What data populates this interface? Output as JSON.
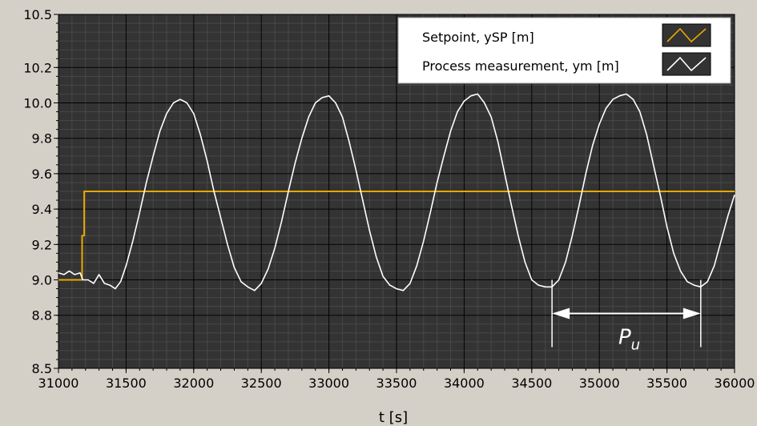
{
  "chart_data": {
    "type": "line",
    "xlabel": "t [s]",
    "xlim": [
      31000,
      36000
    ],
    "ylim": [
      8.5,
      10.5
    ],
    "x_ticks": [
      31000,
      31500,
      32000,
      32500,
      33000,
      33500,
      34000,
      34500,
      35000,
      35500,
      36000
    ],
    "y_ticks": [
      8.5,
      8.8,
      9.0,
      9.2,
      9.4,
      9.6,
      9.8,
      10.0,
      10.2,
      10.5
    ],
    "y_tick_labels": [
      "8.5",
      "8.8",
      "9.0",
      "9.2",
      "9.4",
      "9.6",
      "9.8",
      "10.0",
      "10.2",
      "10.5"
    ],
    "grid": true,
    "legend_position": "top-right",
    "series": [
      {
        "name": "Setpoint, ySP [m]",
        "color": "#e8a800",
        "points": [
          [
            31000,
            9.0
          ],
          [
            31175,
            9.0
          ],
          [
            31175,
            9.25
          ],
          [
            31190,
            9.25
          ],
          [
            31190,
            9.5
          ],
          [
            36000,
            9.5
          ]
        ]
      },
      {
        "name": "Process measurement, ym [m]",
        "color": "#ffffff",
        "points": [
          [
            31000,
            9.04
          ],
          [
            31040,
            9.03
          ],
          [
            31080,
            9.05
          ],
          [
            31120,
            9.03
          ],
          [
            31160,
            9.04
          ],
          [
            31180,
            9.0
          ],
          [
            31220,
            9.0
          ],
          [
            31260,
            8.98
          ],
          [
            31300,
            9.03
          ],
          [
            31340,
            8.98
          ],
          [
            31380,
            8.97
          ],
          [
            31420,
            8.95
          ],
          [
            31460,
            8.99
          ],
          [
            31500,
            9.08
          ],
          [
            31550,
            9.22
          ],
          [
            31600,
            9.38
          ],
          [
            31650,
            9.55
          ],
          [
            31700,
            9.7
          ],
          [
            31750,
            9.84
          ],
          [
            31800,
            9.94
          ],
          [
            31850,
            10.0
          ],
          [
            31900,
            10.02
          ],
          [
            31950,
            10.0
          ],
          [
            32000,
            9.94
          ],
          [
            32050,
            9.82
          ],
          [
            32100,
            9.67
          ],
          [
            32150,
            9.5
          ],
          [
            32200,
            9.35
          ],
          [
            32250,
            9.2
          ],
          [
            32300,
            9.07
          ],
          [
            32350,
            8.99
          ],
          [
            32400,
            8.96
          ],
          [
            32450,
            8.94
          ],
          [
            32500,
            8.98
          ],
          [
            32550,
            9.06
          ],
          [
            32600,
            9.18
          ],
          [
            32650,
            9.33
          ],
          [
            32700,
            9.5
          ],
          [
            32750,
            9.66
          ],
          [
            32800,
            9.8
          ],
          [
            32850,
            9.92
          ],
          [
            32900,
            10.0
          ],
          [
            32950,
            10.03
          ],
          [
            33000,
            10.04
          ],
          [
            33050,
            10.0
          ],
          [
            33100,
            9.92
          ],
          [
            33150,
            9.78
          ],
          [
            33200,
            9.62
          ],
          [
            33250,
            9.45
          ],
          [
            33300,
            9.28
          ],
          [
            33350,
            9.13
          ],
          [
            33400,
            9.02
          ],
          [
            33450,
            8.97
          ],
          [
            33500,
            8.95
          ],
          [
            33550,
            8.94
          ],
          [
            33600,
            8.98
          ],
          [
            33650,
            9.08
          ],
          [
            33700,
            9.22
          ],
          [
            33750,
            9.38
          ],
          [
            33800,
            9.55
          ],
          [
            33850,
            9.7
          ],
          [
            33900,
            9.84
          ],
          [
            33950,
            9.95
          ],
          [
            34000,
            10.01
          ],
          [
            34050,
            10.04
          ],
          [
            34100,
            10.05
          ],
          [
            34150,
            10.0
          ],
          [
            34200,
            9.92
          ],
          [
            34250,
            9.78
          ],
          [
            34300,
            9.6
          ],
          [
            34350,
            9.42
          ],
          [
            34400,
            9.25
          ],
          [
            34450,
            9.1
          ],
          [
            34500,
            9.0
          ],
          [
            34550,
            8.97
          ],
          [
            34600,
            8.96
          ],
          [
            34650,
            8.96
          ],
          [
            34700,
            9.0
          ],
          [
            34750,
            9.1
          ],
          [
            34800,
            9.25
          ],
          [
            34850,
            9.42
          ],
          [
            34900,
            9.6
          ],
          [
            34950,
            9.76
          ],
          [
            35000,
            9.88
          ],
          [
            35050,
            9.97
          ],
          [
            35100,
            10.02
          ],
          [
            35150,
            10.04
          ],
          [
            35200,
            10.05
          ],
          [
            35250,
            10.02
          ],
          [
            35300,
            9.95
          ],
          [
            35350,
            9.82
          ],
          [
            35400,
            9.65
          ],
          [
            35450,
            9.48
          ],
          [
            35500,
            9.3
          ],
          [
            35550,
            9.15
          ],
          [
            35600,
            9.05
          ],
          [
            35650,
            8.99
          ],
          [
            35700,
            8.97
          ],
          [
            35750,
            8.96
          ],
          [
            35800,
            8.99
          ],
          [
            35850,
            9.08
          ],
          [
            35900,
            9.22
          ],
          [
            35950,
            9.36
          ],
          [
            36000,
            9.48
          ]
        ]
      }
    ],
    "annotations": [
      {
        "label": "P",
        "subscript": "u",
        "x_start": 34650,
        "x_end": 35750,
        "y": 8.81
      }
    ]
  }
}
